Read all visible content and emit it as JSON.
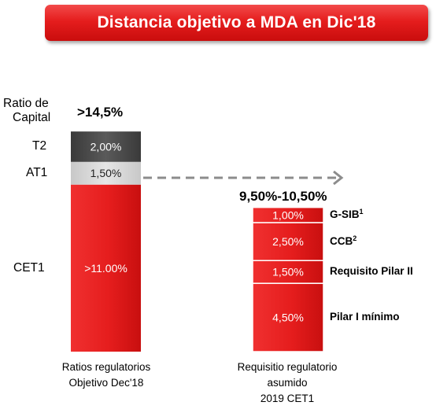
{
  "title": "Distancia objetivo a MDA en Dic'18",
  "colors": {
    "banner": "#e51d1d",
    "cet1": "#e51d1d",
    "at1": "#d8d8d8",
    "t2": "#4a4a4a",
    "arrow": "#8c8c8c"
  },
  "chart_data": {
    "type": "bar",
    "stacked": true,
    "categories": [
      [
        "Ratios regulatorios",
        "Objetivo Dec'18"
      ],
      [
        "Requisitio regulatorio",
        "asumido",
        "2019 CET1"
      ]
    ],
    "ylim": [
      0,
      15.6
    ],
    "grid": false,
    "legend": "none",
    "left_axis_label": [
      "Ratio de",
      "Capital"
    ],
    "bars": [
      {
        "total_label": ">14,5%",
        "segments": [
          {
            "name": "CET1",
            "value": 11.0,
            "label": ">11.00%"
          },
          {
            "name": "AT1",
            "value": 1.5,
            "label": "1,50%"
          },
          {
            "name": "T2",
            "value": 2.0,
            "label": "2,00%"
          }
        ]
      },
      {
        "total_label": "9,50%-10,50%",
        "segments": [
          {
            "name": "Pilar I mínimo",
            "value": 4.5,
            "label": "4,50%"
          },
          {
            "name": "Requisito Pilar II",
            "value": 1.5,
            "label": "1,50%"
          },
          {
            "name": "CCB",
            "sup": "2",
            "value": 2.5,
            "label": "2,50%"
          },
          {
            "name": "G-SIB",
            "sup": "1",
            "value": 1.0,
            "label": "1,00%"
          }
        ]
      }
    ]
  }
}
